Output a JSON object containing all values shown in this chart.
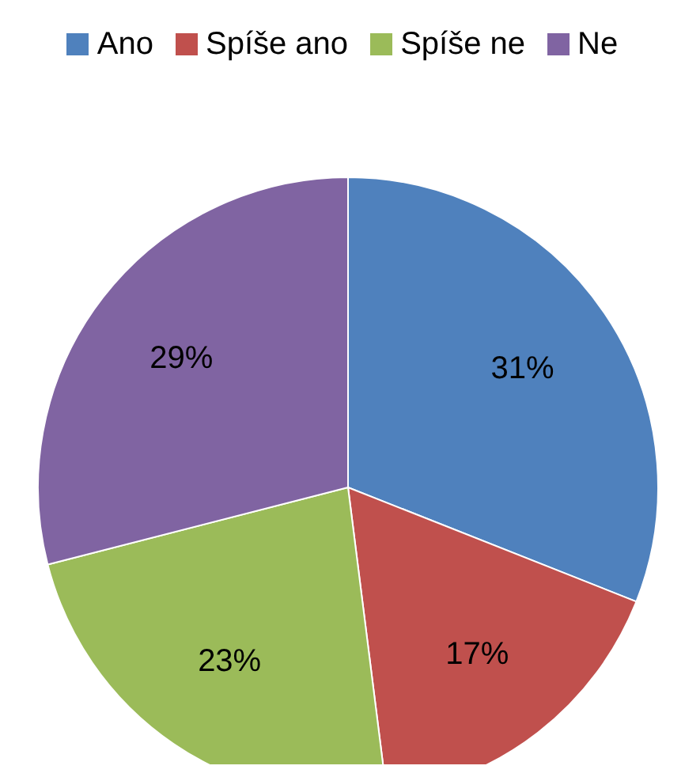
{
  "chart_data": {
    "type": "pie",
    "categories": [
      "Ano",
      "Spíše ano",
      "Spíše ne",
      "Ne"
    ],
    "values": [
      31,
      17,
      23,
      29
    ],
    "colors": [
      "#4f81bd",
      "#c0504d",
      "#9bbb59",
      "#8064a2"
    ],
    "value_labels": [
      "31%",
      "17%",
      "23%",
      "29%"
    ],
    "legend": "top"
  }
}
